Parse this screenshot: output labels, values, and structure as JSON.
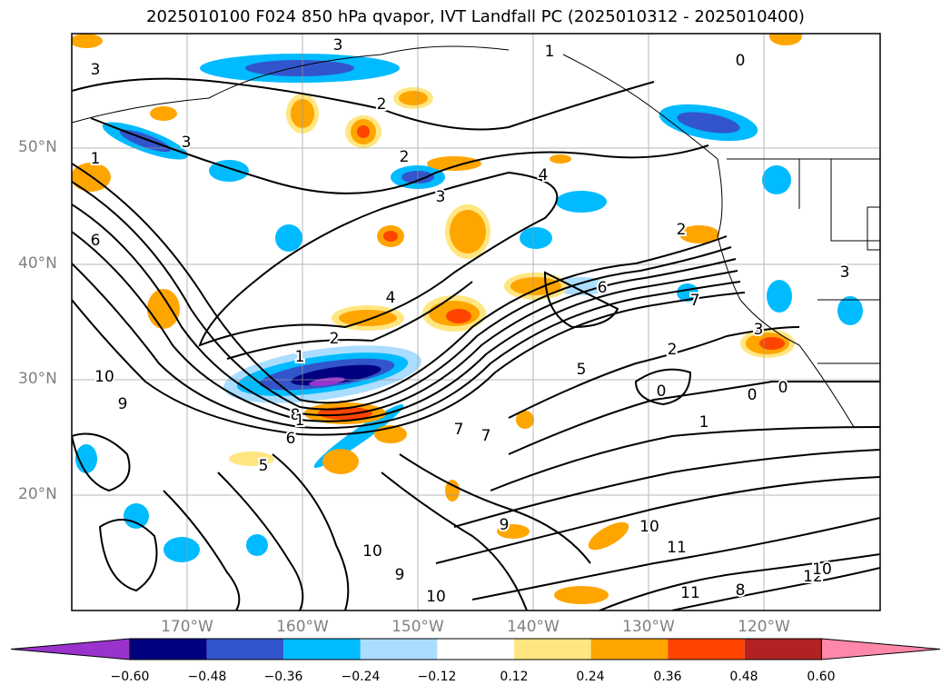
{
  "title": "2025010100 F024 850 hPa qvapor, IVT Landfall PC (2025010312 - 2025010400)",
  "lat_labels": [
    "50°N",
    "40°N",
    "30°N",
    "20°N"
  ],
  "lon_labels": [
    "170°W",
    "160°W",
    "150°W",
    "140°W",
    "130°W",
    "120°W"
  ],
  "colorbar": {
    "colors": [
      "#9933cc",
      "#000080",
      "#3355cc",
      "#00bbff",
      "#aaddff",
      "#ffffff",
      "#ffe680",
      "#ffa500",
      "#ff4400",
      "#b22222",
      "#ff88aa"
    ],
    "tick_labels": [
      "−0.60",
      "−0.48",
      "−0.36",
      "−0.24",
      "−0.12",
      "0.12",
      "0.24",
      "0.36",
      "0.48",
      "0.60"
    ]
  },
  "contour_labels": [
    "3",
    "1",
    "0",
    "1",
    "2",
    "3",
    "2",
    "4",
    "3",
    "2",
    "1",
    "2",
    "3",
    "4",
    "10",
    "6",
    "9",
    "8",
    "7",
    "6",
    "5",
    "7",
    "10",
    "9",
    "11",
    "10",
    "12",
    "11",
    "10",
    "8",
    "9",
    "10",
    "0",
    "0",
    "5",
    "6",
    "7",
    "1",
    "2",
    "3",
    "1",
    "0",
    "3"
  ]
}
